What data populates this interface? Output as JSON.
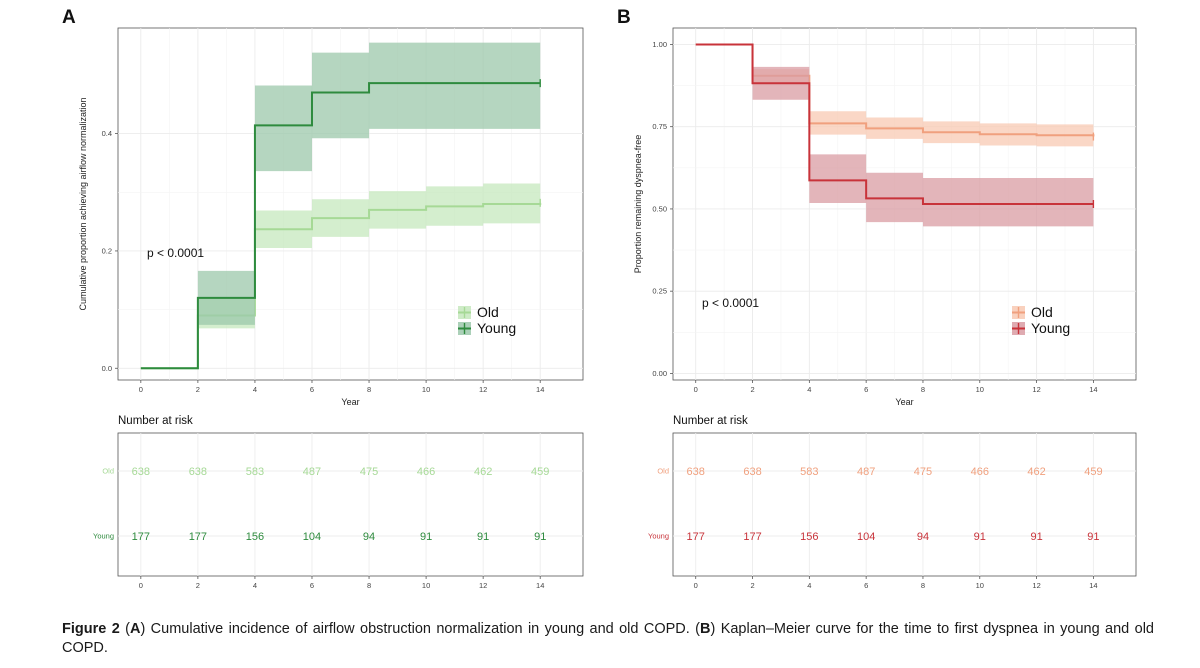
{
  "chart_data": [
    {
      "type": "line",
      "step": true,
      "panel_label": "A",
      "xlabel": "Year",
      "ylabel": "Cumulative proportion achieving airflow normalization",
      "xlim": [
        -0.8,
        15.5
      ],
      "ylim": [
        -0.02,
        0.58
      ],
      "x_ticks": [
        0,
        2,
        4,
        6,
        8,
        10,
        12,
        14
      ],
      "y_ticks": [
        0.0,
        0.2,
        0.4
      ],
      "y_tick_labels": [
        "0.0",
        "0.2",
        "0.4"
      ],
      "annotation": "p < 0.0001",
      "grid": true,
      "legend_position": "right",
      "series": [
        {
          "name": "Old",
          "color": "#a6d996",
          "band_color": "#c6e8bd",
          "x": [
            0,
            2,
            4,
            6,
            8,
            10,
            12,
            14
          ],
          "y": [
            0.0,
            0.09,
            0.237,
            0.256,
            0.27,
            0.276,
            0.28,
            0.282
          ],
          "lower": [
            0.0,
            0.068,
            0.205,
            0.224,
            0.238,
            0.243,
            0.247,
            0.248
          ],
          "upper": [
            0.0,
            0.12,
            0.269,
            0.288,
            0.302,
            0.31,
            0.315,
            0.317
          ]
        },
        {
          "name": "Young",
          "color": "#2e8b3e",
          "band_color": "#9cc8ab",
          "x": [
            0,
            2,
            4,
            6,
            8,
            10,
            12,
            14
          ],
          "y": [
            0.0,
            0.12,
            0.414,
            0.47,
            0.486,
            0.486,
            0.486,
            0.486
          ],
          "lower": [
            0.0,
            0.074,
            0.336,
            0.392,
            0.408,
            0.408,
            0.408,
            0.408
          ],
          "upper": [
            0.0,
            0.166,
            0.482,
            0.538,
            0.555,
            0.555,
            0.555,
            0.555
          ]
        }
      ],
      "risk_table": {
        "title": "Number at risk",
        "times": [
          0,
          2,
          4,
          6,
          8,
          10,
          12,
          14
        ],
        "rows": [
          {
            "label": "Old",
            "color": "#a6d996",
            "values": [
              638,
              638,
              583,
              487,
              475,
              466,
              462,
              459
            ]
          },
          {
            "label": "Young",
            "color": "#2e8b3e",
            "values": [
              177,
              177,
              156,
              104,
              94,
              91,
              91,
              91
            ]
          }
        ]
      }
    },
    {
      "type": "line",
      "step": true,
      "panel_label": "B",
      "xlabel": "Year",
      "ylabel": "Proportion remaining dyspnea-free",
      "xlim": [
        -0.8,
        15.5
      ],
      "ylim": [
        -0.02,
        1.05
      ],
      "x_ticks": [
        0,
        2,
        4,
        6,
        8,
        10,
        12,
        14
      ],
      "y_ticks": [
        0.0,
        0.25,
        0.5,
        0.75,
        1.0
      ],
      "y_tick_labels": [
        "0.00",
        "0.25",
        "0.50",
        "0.75",
        "1.00"
      ],
      "annotation": "p < 0.0001",
      "grid": true,
      "legend_position": "right",
      "series": [
        {
          "name": "Old",
          "color": "#f0a07e",
          "band_color": "#f8c9b3",
          "x": [
            0,
            2,
            4,
            6,
            8,
            10,
            12,
            14
          ],
          "y": [
            1.0,
            0.905,
            0.76,
            0.745,
            0.733,
            0.727,
            0.724,
            0.72
          ],
          "lower": [
            1.0,
            0.88,
            0.726,
            0.713,
            0.7,
            0.693,
            0.69,
            0.686
          ],
          "upper": [
            1.0,
            0.925,
            0.797,
            0.778,
            0.766,
            0.76,
            0.757,
            0.754
          ]
        },
        {
          "name": "Young",
          "color": "#c8333a",
          "band_color": "#d99ca3",
          "x": [
            0,
            2,
            4,
            6,
            8,
            10,
            12,
            14
          ],
          "y": [
            1.0,
            0.882,
            0.587,
            0.532,
            0.515,
            0.515,
            0.515,
            0.515
          ],
          "lower": [
            1.0,
            0.832,
            0.518,
            0.46,
            0.447,
            0.447,
            0.447,
            0.447
          ],
          "upper": [
            1.0,
            0.932,
            0.666,
            0.61,
            0.594,
            0.594,
            0.594,
            0.594
          ]
        }
      ],
      "risk_table": {
        "title": "Number at risk",
        "times": [
          0,
          2,
          4,
          6,
          8,
          10,
          12,
          14
        ],
        "rows": [
          {
            "label": "Old",
            "color": "#f0a07e",
            "values": [
              638,
              638,
              583,
              487,
              475,
              466,
              462,
              459
            ]
          },
          {
            "label": "Young",
            "color": "#c8333a",
            "values": [
              177,
              177,
              156,
              104,
              94,
              91,
              91,
              91
            ]
          }
        ]
      }
    }
  ],
  "caption": {
    "lead": "Figure 2",
    "segments": [
      {
        "t": " (",
        "b": false
      },
      {
        "t": "A",
        "b": true
      },
      {
        "t": ") Cumulative incidence of airflow obstruction normalization in young and old COPD. (",
        "b": false
      },
      {
        "t": "B",
        "b": true
      },
      {
        "t": ") Kaplan–Meier curve for the time to first dyspnea in young and old COPD.",
        "b": false
      }
    ]
  }
}
